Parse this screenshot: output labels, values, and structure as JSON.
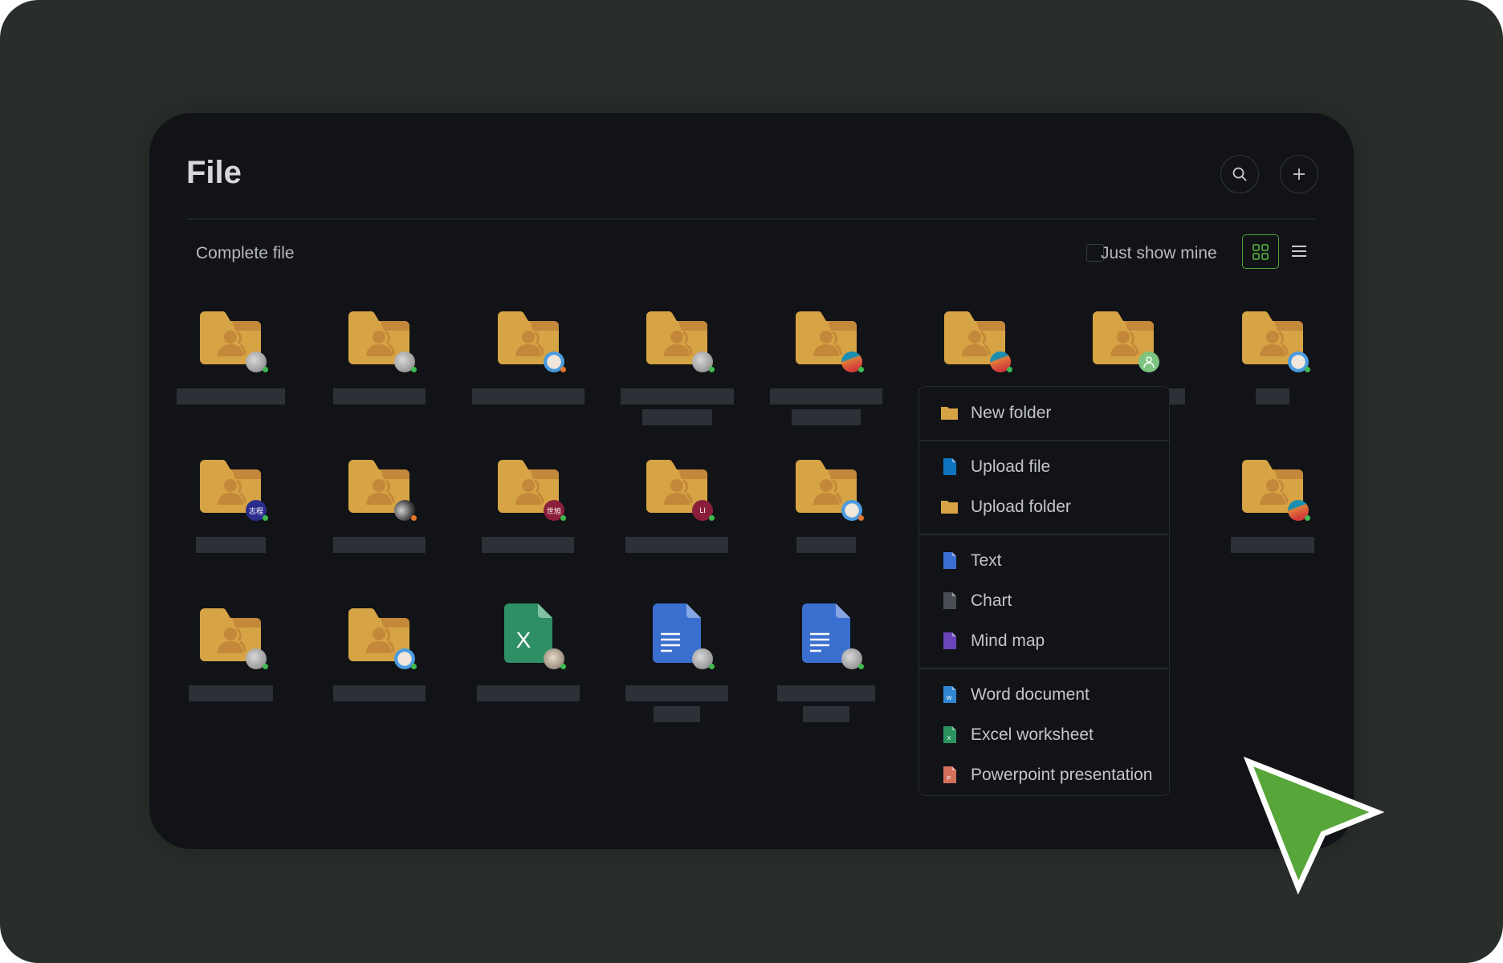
{
  "header": {
    "title": "File",
    "search_icon": "search-icon",
    "add_icon": "plus-icon"
  },
  "toolbar": {
    "breadcrumb": "Complete file",
    "just_show_mine_label": "Just show mine",
    "just_show_mine_checked": false,
    "view_mode": "grid",
    "accent": "#4ea43a"
  },
  "items": [
    {
      "type": "folder",
      "badge": "photo-gray",
      "status": "#3fb950",
      "labels": [
        135
      ]
    },
    {
      "type": "folder",
      "badge": "photo-gray",
      "status": "#3fb950",
      "labels": [
        115
      ]
    },
    {
      "type": "folder",
      "badge": "avatar-blue",
      "status": "#e3742d",
      "labels": [
        140
      ]
    },
    {
      "type": "folder",
      "badge": "photo-gray",
      "status": "#3fb950",
      "labels": [
        141,
        87
      ]
    },
    {
      "type": "folder",
      "badge": "cartoon",
      "status": "#3fb950",
      "labels": [
        140,
        86
      ]
    },
    {
      "type": "folder",
      "badge": "cartoon",
      "status": "#3fb950",
      "labels": [
        140
      ]
    },
    {
      "type": "folder",
      "badge": "user-green",
      "status": "",
      "labels": [
        153
      ]
    },
    {
      "type": "folder",
      "badge": "avatar-blue",
      "status": "#3fb950",
      "labels": [
        42
      ]
    },
    {
      "type": "folder",
      "badge": "text",
      "badge_text": "志程",
      "badge_color": "#2b2d8f",
      "status": "#3fb950",
      "labels": [
        87
      ]
    },
    {
      "type": "folder",
      "badge": "photo-dark",
      "status": "#e3742d",
      "labels": [
        115
      ]
    },
    {
      "type": "folder",
      "badge": "text",
      "badge_text": "世旭",
      "badge_color": "#8b1e3a",
      "status": "#3fb950",
      "labels": [
        115
      ]
    },
    {
      "type": "folder",
      "badge": "text",
      "badge_text": "LI",
      "badge_color": "#8b1e3a",
      "status": "#3fb950",
      "labels": [
        128
      ]
    },
    {
      "type": "folder",
      "badge": "avatar-blue",
      "status": "#e3742d",
      "labels": [
        74
      ]
    },
    {
      "type": "folder",
      "badge": "photo-gray",
      "status": "#3fb950",
      "labels": [
        110
      ]
    },
    {
      "type": "folder",
      "badge": "photo-gray",
      "status": "#3fb950",
      "labels": [
        110
      ]
    },
    {
      "type": "folder",
      "badge": "cartoon",
      "status": "#3fb950",
      "labels": [
        104
      ]
    },
    {
      "type": "folder",
      "badge": "photo-gray",
      "status": "#3fb950",
      "labels": [
        105
      ]
    },
    {
      "type": "folder",
      "badge": "avatar-blue",
      "status": "#3fb950",
      "labels": [
        115
      ]
    },
    {
      "type": "excel",
      "badge": "photo-warm",
      "status": "#3fb950",
      "labels": [
        128
      ]
    },
    {
      "type": "doc",
      "badge": "photo-gray",
      "status": "#3fb950",
      "labels": [
        128,
        58
      ]
    },
    {
      "type": "doc",
      "badge": "photo-gray",
      "status": "#3fb950",
      "labels": [
        122,
        58
      ]
    }
  ],
  "menu": {
    "groups": [
      [
        {
          "label": "New folder",
          "icon": "folder-icon",
          "color": "#d6a444"
        }
      ],
      [
        {
          "label": "Upload file",
          "icon": "upload-file-icon",
          "color": "#0f74c0"
        },
        {
          "label": "Upload folder",
          "icon": "upload-folder-icon",
          "color": "#d6a444"
        }
      ],
      [
        {
          "label": "Text",
          "icon": "text-doc-icon",
          "color": "#3b6fd4"
        },
        {
          "label": "Chart",
          "icon": "chart-doc-icon",
          "color": "#4a4d53"
        },
        {
          "label": "Mind map",
          "icon": "mind-map-icon",
          "color": "#6a44b8"
        }
      ],
      [
        {
          "label": "Word document",
          "icon": "word-icon",
          "color": "#2f86d1",
          "glyph": "W"
        },
        {
          "label": "Excel worksheet",
          "icon": "excel-icon",
          "color": "#2a9360",
          "glyph": "X"
        },
        {
          "label": "Powerpoint presentation",
          "icon": "powerpoint-icon",
          "color": "#d3705a",
          "glyph": "P"
        }
      ]
    ]
  },
  "cursor": {
    "color": "#57a63a"
  }
}
